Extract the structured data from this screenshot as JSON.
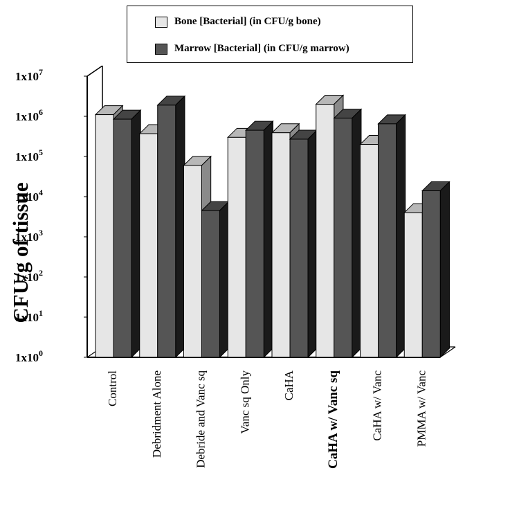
{
  "chart_data": {
    "type": "bar",
    "title": "",
    "xlabel": "",
    "ylabel": "CFU/g of tissue",
    "y_scale": "log",
    "ylim": [
      1,
      10000000
    ],
    "y_ticks": [
      {
        "value": 1,
        "base": "1x10",
        "exp": "0"
      },
      {
        "value": 10,
        "base": "1x10",
        "exp": "1"
      },
      {
        "value": 100,
        "base": "1x10",
        "exp": "2"
      },
      {
        "value": 1000,
        "base": "1x10",
        "exp": "3"
      },
      {
        "value": 10000,
        "base": "1x10",
        "exp": "4"
      },
      {
        "value": 100000,
        "base": "1x10",
        "exp": "5"
      },
      {
        "value": 1000000,
        "base": "1x10",
        "exp": "6"
      },
      {
        "value": 10000000,
        "base": "1x10",
        "exp": "7"
      }
    ],
    "categories": [
      "Control",
      "Debridment Alone",
      "Debride and Vanc sq",
      "Vanc sq Only",
      "CaHA",
      "CaHA w/ Vanc sq",
      "CaHA w/ Vanc",
      "PMMA w/ Vanc"
    ],
    "bold_categories": [
      "CaHA w/ Vanc sq"
    ],
    "series": [
      {
        "name": "Bone [Bacterial] (in CFU/g bone)",
        "color": "#e6e6e6",
        "values": [
          1100000,
          370000,
          60000,
          300000,
          390000,
          2000000,
          200000,
          4000
        ]
      },
      {
        "name": "Marrow [Bacterial] (in CFU/g marrow)",
        "color": "#555555",
        "values": [
          850000,
          1900000,
          4500,
          450000,
          270000,
          900000,
          650000,
          14000
        ]
      }
    ],
    "legend_position": "top",
    "grid": false
  }
}
